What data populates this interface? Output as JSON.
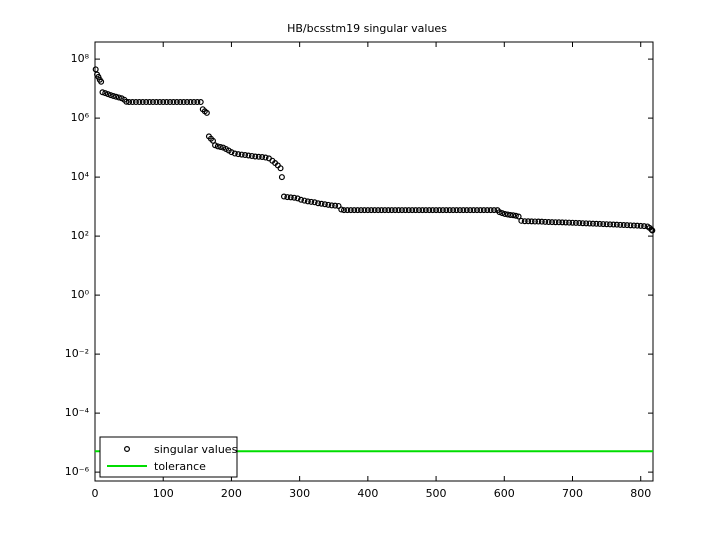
{
  "chart_data": {
    "type": "scatter",
    "title": "HB/bcsstm19 singular values",
    "xlim": [
      0,
      818
    ],
    "xticks": [
      0,
      100,
      200,
      300,
      400,
      500,
      600,
      700,
      800
    ],
    "ylim": [
      5e-07,
      380000000.0
    ],
    "log_y": true,
    "yticks": [
      {
        "value": 1e-06,
        "label": "10⁻⁶"
      },
      {
        "value": 0.0001,
        "label": "10⁻⁴"
      },
      {
        "value": 0.01,
        "label": "10⁻²"
      },
      {
        "value": 1,
        "label": "10⁰"
      },
      {
        "value": 100,
        "label": "10²"
      },
      {
        "value": 10000,
        "label": "10⁴"
      },
      {
        "value": 1000000,
        "label": "10⁶"
      },
      {
        "value": 100000000,
        "label": "10⁸"
      }
    ],
    "legend": "lower left",
    "series": [
      {
        "name": "singular values",
        "mode": "markers",
        "color": "#000000",
        "x": [
          1,
          3,
          5,
          7,
          9,
          11,
          15,
          19,
          23,
          27,
          31,
          35,
          39,
          43,
          46,
          50,
          55,
          60,
          65,
          70,
          75,
          80,
          85,
          90,
          95,
          100,
          105,
          110,
          115,
          120,
          125,
          130,
          135,
          140,
          145,
          150,
          155,
          158,
          161,
          164,
          167,
          170,
          173,
          176,
          180,
          184,
          188,
          192,
          196,
          200,
          205,
          210,
          215,
          220,
          225,
          230,
          235,
          240,
          245,
          250,
          255,
          260,
          264,
          268,
          272,
          274,
          277,
          282,
          287,
          292,
          297,
          302,
          307,
          312,
          317,
          322,
          327,
          332,
          337,
          342,
          347,
          352,
          357,
          361,
          365,
          370,
          375,
          380,
          385,
          390,
          395,
          400,
          405,
          410,
          415,
          420,
          425,
          430,
          435,
          440,
          445,
          450,
          455,
          460,
          465,
          470,
          475,
          480,
          485,
          490,
          495,
          500,
          505,
          510,
          515,
          520,
          525,
          530,
          535,
          540,
          545,
          550,
          555,
          560,
          565,
          570,
          575,
          580,
          585,
          590,
          593,
          597,
          601,
          605,
          609,
          613,
          617,
          621,
          625,
          630,
          635,
          640,
          645,
          650,
          655,
          660,
          665,
          670,
          675,
          680,
          685,
          690,
          695,
          700,
          705,
          710,
          715,
          720,
          725,
          730,
          735,
          740,
          745,
          750,
          755,
          760,
          765,
          770,
          775,
          780,
          785,
          790,
          795,
          800,
          805,
          810,
          813,
          816,
          817
        ],
        "values": [
          45000000.0,
          30000000.0,
          25000000.0,
          20000000.0,
          17000000.0,
          7500000.0,
          7000000.0,
          6500000.0,
          6000000.0,
          5600000.0,
          5300000.0,
          5000000.0,
          4700000.0,
          4200000.0,
          3600000.0,
          3500000.0,
          3500000.0,
          3500000.0,
          3500000.0,
          3500000.0,
          3500000.0,
          3500000.0,
          3500000.0,
          3500000.0,
          3500000.0,
          3500000.0,
          3500000.0,
          3500000.0,
          3500000.0,
          3500000.0,
          3500000.0,
          3500000.0,
          3500000.0,
          3500000.0,
          3500000.0,
          3500000.0,
          3500000.0,
          2000000.0,
          1700000.0,
          1500000.0,
          240000.0,
          200000.0,
          170000.0,
          120000.0,
          110000.0,
          105000.0,
          100000.0,
          90000.0,
          80000.0,
          70000.0,
          63000.0,
          60000.0,
          58000.0,
          56000.0,
          54000.0,
          52000.0,
          50000.0,
          49000.0,
          48000.0,
          46000.0,
          43000.0,
          36000.0,
          30000.0,
          25000.0,
          20000.0,
          10000.0,
          2200,
          2100,
          2050,
          2000,
          1900,
          1700,
          1600,
          1500,
          1450,
          1400,
          1300,
          1250,
          1200,
          1150,
          1100,
          1080,
          1050,
          800,
          760,
          760,
          760,
          760,
          760,
          760,
          760,
          760,
          760,
          760,
          760,
          760,
          760,
          760,
          760,
          760,
          760,
          760,
          760,
          760,
          760,
          760,
          760,
          760,
          760,
          760,
          760,
          760,
          760,
          760,
          760,
          760,
          760,
          760,
          760,
          760,
          760,
          760,
          760,
          760,
          760,
          760,
          760,
          760,
          760,
          760,
          650,
          600,
          560,
          540,
          520,
          510,
          490,
          460,
          330,
          320,
          318,
          316,
          314,
          312,
          310,
          305,
          300,
          298,
          296,
          294,
          292,
          290,
          287,
          284,
          280,
          277,
          274,
          271,
          268,
          265,
          262,
          259,
          256,
          253,
          250,
          247,
          244,
          241,
          238,
          235,
          232,
          229,
          226,
          222,
          218,
          212,
          190,
          165,
          155
        ]
      },
      {
        "name": "tolerance",
        "mode": "line",
        "color": "#00dd00",
        "x": [
          0,
          818
        ],
        "values": [
          5.1e-06,
          5.1e-06
        ]
      }
    ]
  }
}
